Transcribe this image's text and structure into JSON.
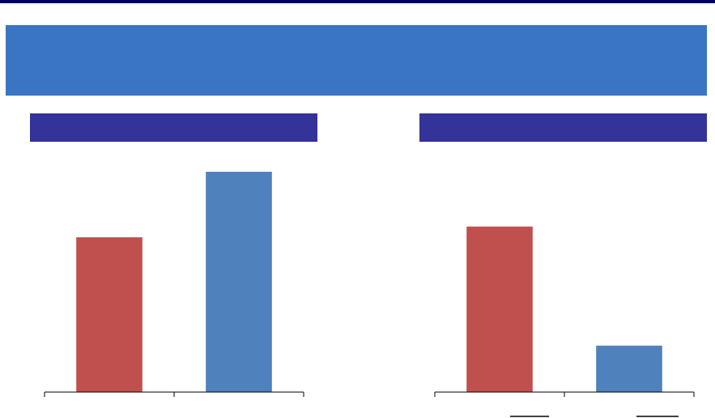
{
  "chart_data": [
    {
      "type": "bar",
      "categories": [
        null,
        null
      ],
      "values": [
        65,
        92.5
      ],
      "colors": [
        "#c0504d",
        "#4f81bd"
      ],
      "ylim": [
        0,
        100
      ]
    },
    {
      "type": "bar",
      "categories": [
        null,
        null
      ],
      "values": [
        69.5,
        19.5
      ],
      "colors": [
        "#c0504d",
        "#4f81bd"
      ],
      "ylim": [
        0,
        100
      ]
    }
  ]
}
